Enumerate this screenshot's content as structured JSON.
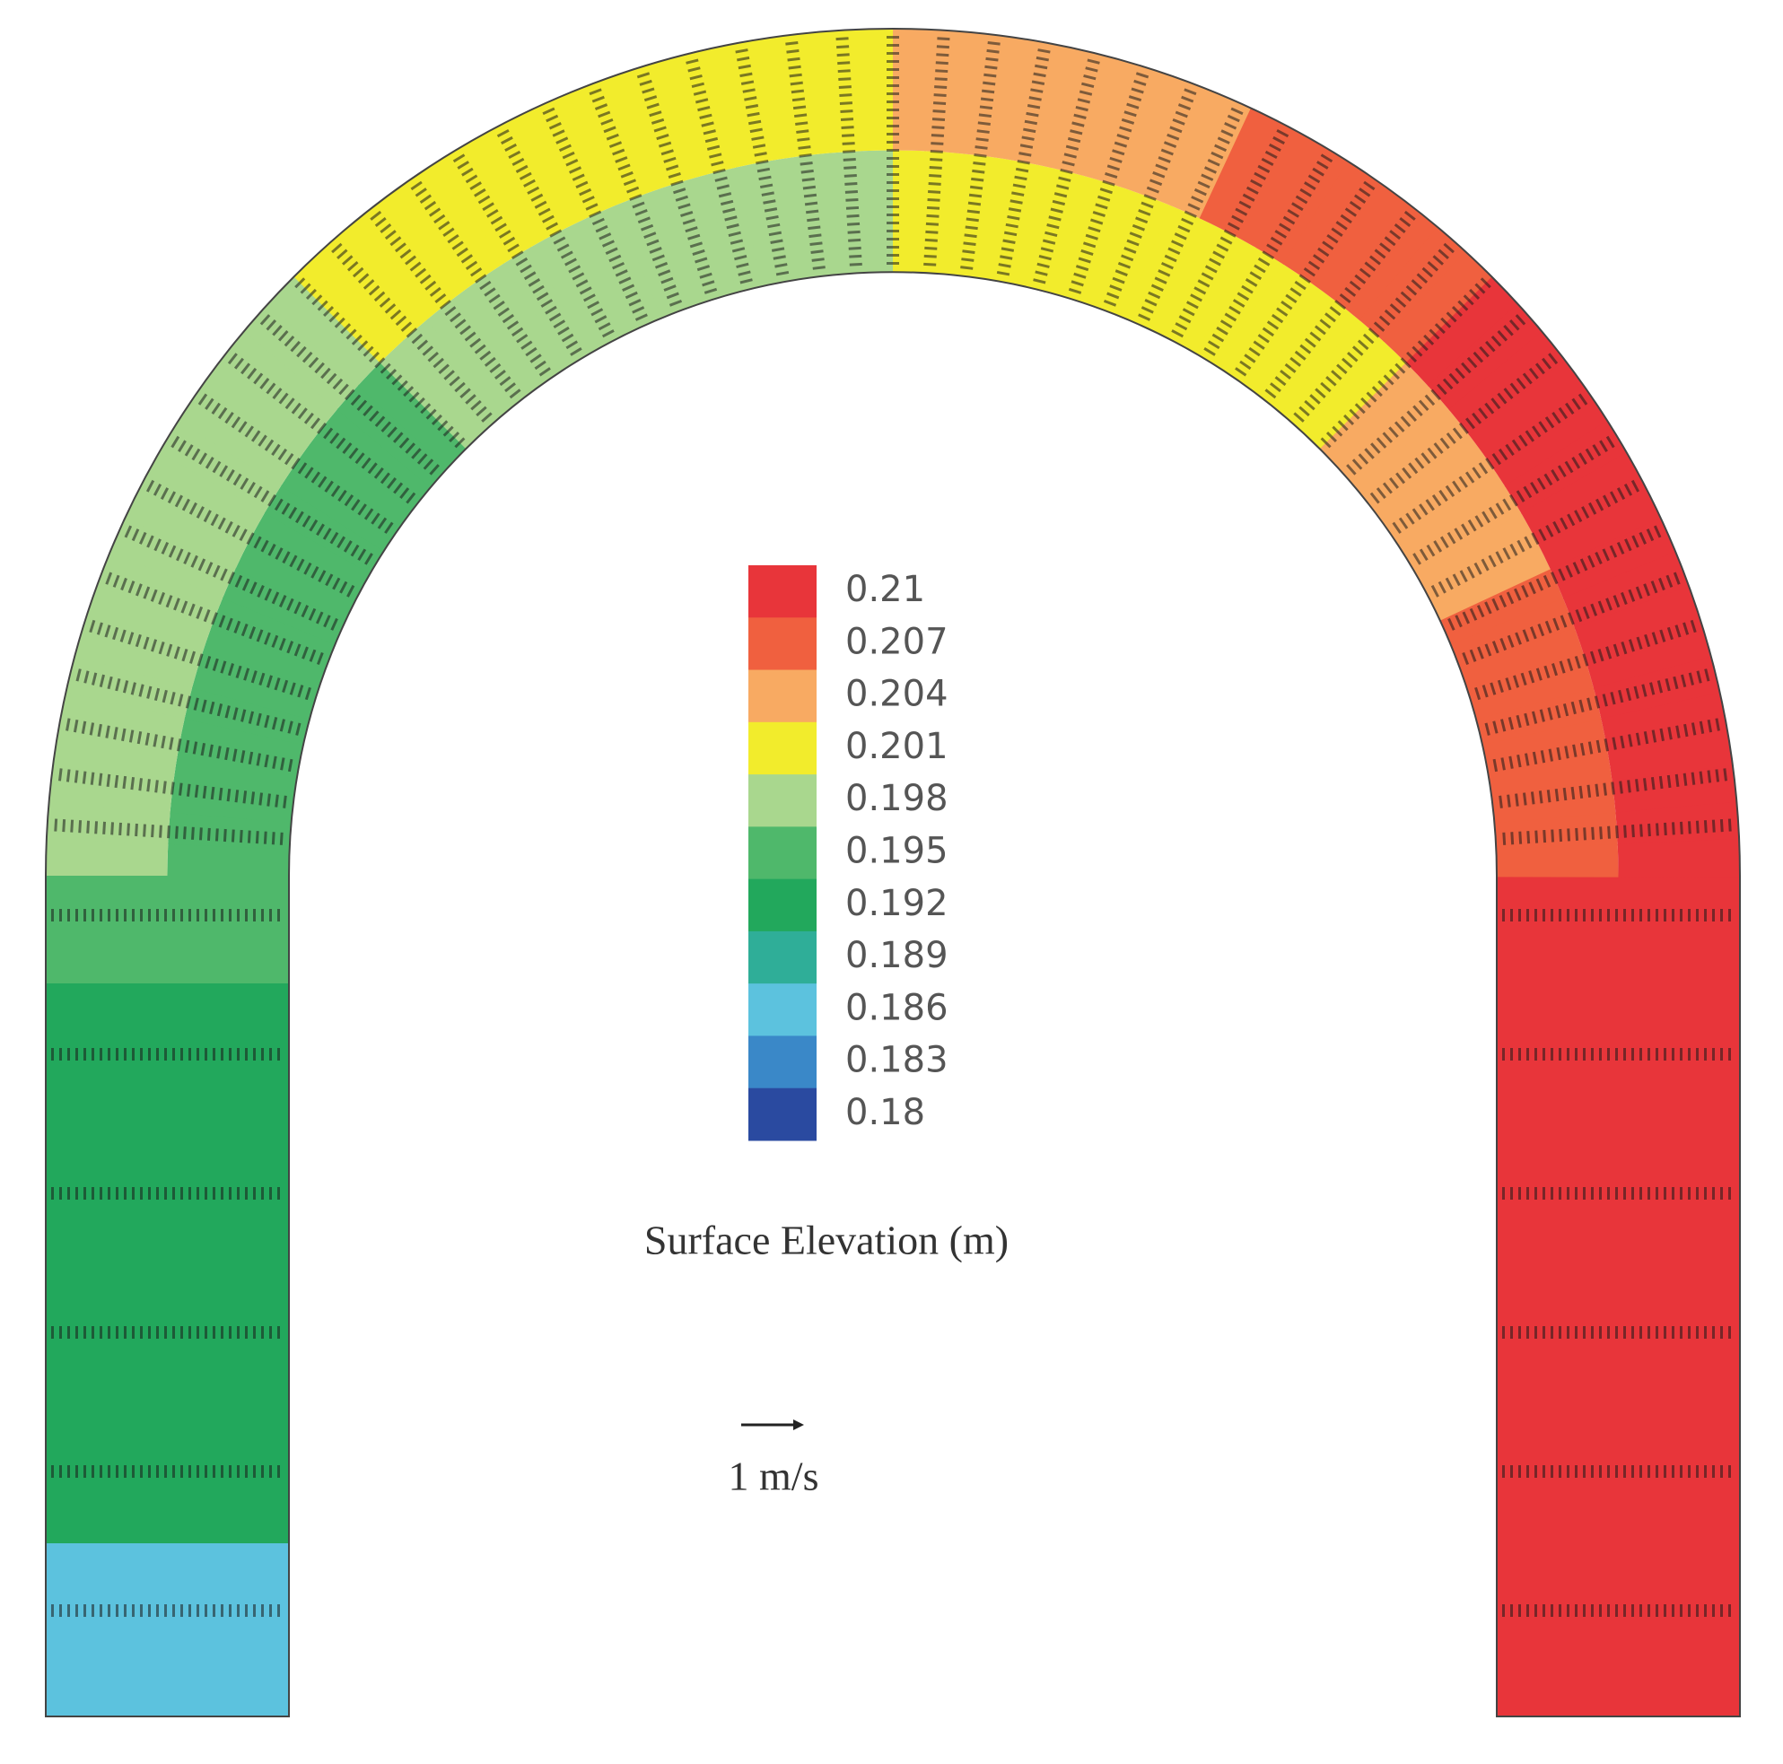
{
  "chart_data": {
    "type": "contour",
    "levels": [
      0.21,
      0.207,
      0.204,
      0.201,
      0.198,
      0.195,
      0.192,
      0.189,
      0.186,
      0.183,
      0.18
    ],
    "colors": [
      "#e8353a",
      "#f0603f",
      "#f8aa62",
      "#f2ec2c",
      "#a9d78e",
      "#4fb86b",
      "#22a85c",
      "#2fae98",
      "#5cc2de",
      "#3a88c8",
      "#2a4aa0"
    ],
    "colorbar_label": "Surface Elevation (m)",
    "scale_label": "1 m/s"
  }
}
